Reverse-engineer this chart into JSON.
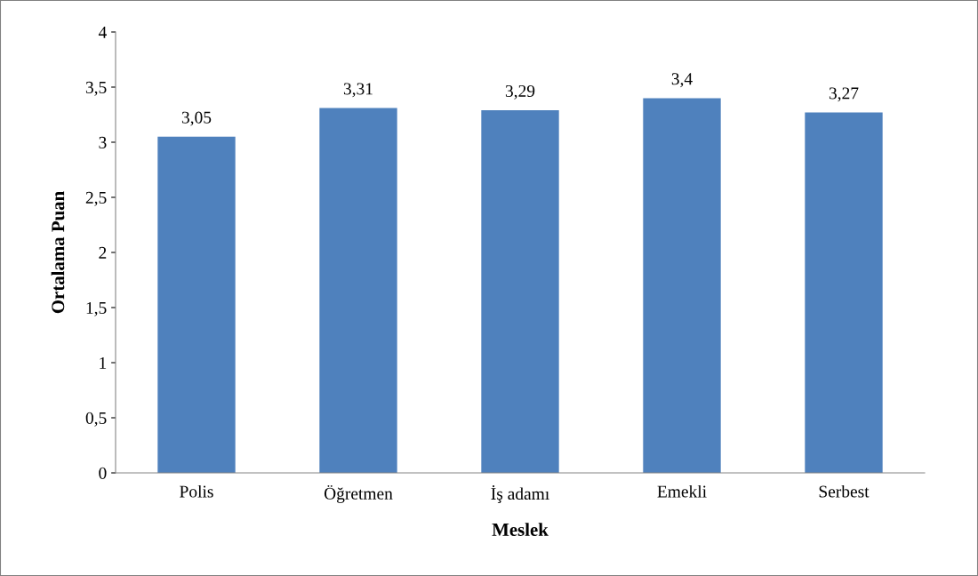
{
  "chart_data": {
    "type": "bar",
    "xlabel": "Meslek",
    "ylabel": "Ortalama Puan",
    "categories": [
      "Polis",
      "Öğretmen",
      "İş adamı",
      "Emekli",
      "Serbest"
    ],
    "values": [
      3.05,
      3.31,
      3.29,
      3.4,
      3.27
    ],
    "value_labels": [
      "3,05",
      "3,31",
      "3,29",
      "3,4",
      "3,27"
    ],
    "color": "#4f81bd",
    "ylim": [
      0,
      4
    ],
    "yticks": [
      0,
      {
        "value": 0.5,
        "label": "0,5"
      },
      1,
      {
        "value": 1.5,
        "label": "1,5"
      },
      2,
      {
        "value": 2.5,
        "label": "2,5"
      },
      3,
      {
        "value": 3.5,
        "label": "3,5"
      },
      4
    ],
    "grid": false,
    "legend": false
  }
}
